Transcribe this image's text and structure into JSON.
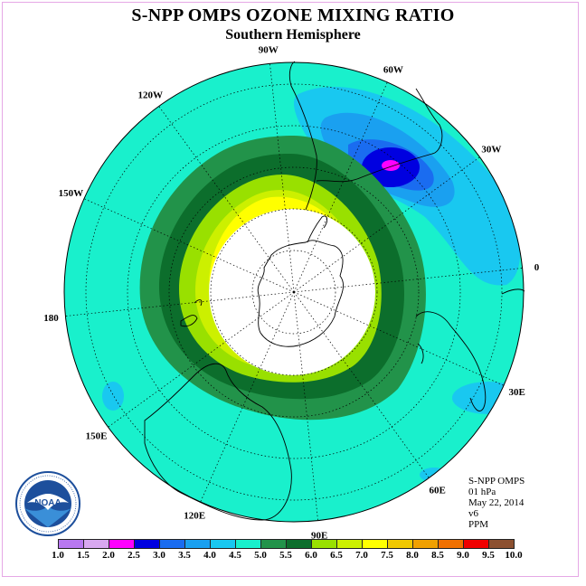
{
  "header": {
    "title": "S-NPP OMPS OZONE MIXING RATIO",
    "subtitle": "Southern Hemisphere"
  },
  "map": {
    "projection": "south-polar-stereographic",
    "longitude_labels": [
      "90W",
      "60W",
      "30W",
      "0",
      "30E",
      "60E",
      "90E",
      "120E",
      "150E",
      "180",
      "150W",
      "120W"
    ],
    "colors": {
      "background_field": "#19f0cc",
      "ring_dark_green": "#0c6e2c",
      "ring_green": "#22934a",
      "ring_lime": "#99e000",
      "ring_yellow_green": "#ccf000",
      "ring_yellow": "#ffff00",
      "core": "#ffffff",
      "low_blue_light": "#19c8f0",
      "low_blue_mid": "#1aa0f0",
      "low_blue_dark": "#1a6cf0",
      "low_blue_deep": "#0000e0",
      "low_magenta": "#ff00ff"
    }
  },
  "info": {
    "lines": [
      "S-NPP OMPS",
      "01 hPa",
      "May 22, 2014",
      "v6",
      "PPM"
    ]
  },
  "legend": {
    "colors": [
      "#b878f0",
      "#d8a8f0",
      "#ff00ff",
      "#0000e0",
      "#1a6cf0",
      "#1aa0f0",
      "#19c8f0",
      "#19f0cc",
      "#22934a",
      "#0c6e2c",
      "#99e000",
      "#ccf000",
      "#ffff00",
      "#f0c800",
      "#f0a000",
      "#f07000",
      "#f00000",
      "#8c5030"
    ],
    "ticks": [
      "1.0",
      "1.5",
      "2.0",
      "2.5",
      "3.0",
      "3.5",
      "4.0",
      "4.5",
      "5.0",
      "5.5",
      "6.0",
      "6.5",
      "7.0",
      "7.5",
      "8.0",
      "8.5",
      "9.0",
      "9.5",
      "10.0"
    ]
  },
  "logo": {
    "text": "NOAA"
  }
}
